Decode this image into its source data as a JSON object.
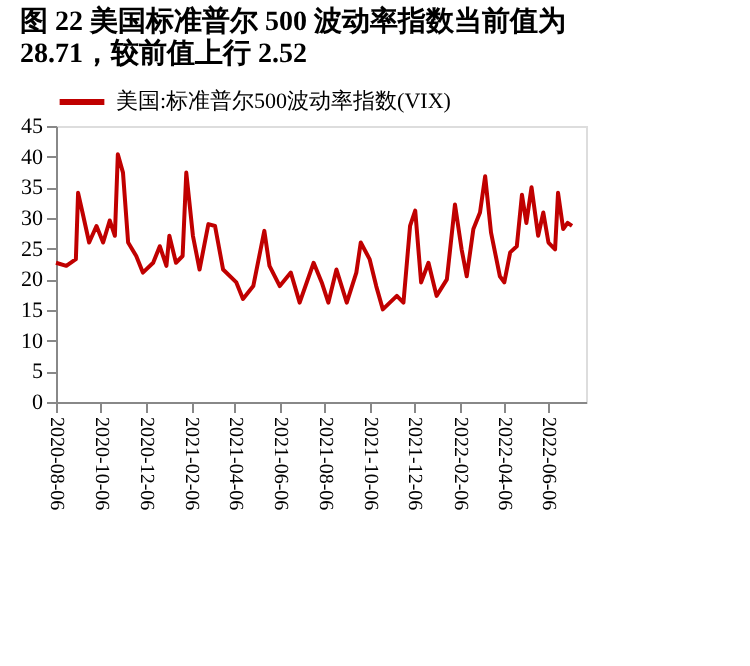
{
  "chart_data": {
    "type": "line",
    "title": "图 22 美国标准普尔 500 波动率指数当前值为 28.71，较前值上行 2.52",
    "series": [
      {
        "name": "美国:标准普尔500波动率指数(VIX)",
        "color": "#c00000",
        "x": [
          "2020-08-06",
          "2020-08-20",
          "2020-09-02",
          "2020-09-05",
          "2020-09-11",
          "2020-09-20",
          "2020-09-30",
          "2020-10-09",
          "2020-10-18",
          "2020-10-25",
          "2020-10-29",
          "2020-11-05",
          "2020-11-12",
          "2020-11-23",
          "2020-12-02",
          "2020-12-16",
          "2020-12-25",
          "2021-01-03",
          "2021-01-07",
          "2021-01-16",
          "2021-01-25",
          "2021-01-30",
          "2021-02-08",
          "2021-02-17",
          "2021-03-01",
          "2021-03-10",
          "2021-03-21",
          "2021-04-08",
          "2021-04-17",
          "2021-05-01",
          "2021-05-16",
          "2021-05-23",
          "2021-06-06",
          "2021-06-21",
          "2021-07-03",
          "2021-07-22",
          "2021-08-02",
          "2021-08-11",
          "2021-08-22",
          "2021-09-05",
          "2021-09-18",
          "2021-09-24",
          "2021-10-06",
          "2021-10-15",
          "2021-10-24",
          "2021-11-12",
          "2021-11-21",
          "2021-11-30",
          "2021-12-07",
          "2021-12-15",
          "2021-12-25",
          "2022-01-05",
          "2022-01-19",
          "2022-01-30",
          "2022-02-08",
          "2022-02-15",
          "2022-02-24",
          "2022-03-05",
          "2022-03-12",
          "2022-03-20",
          "2022-04-01",
          "2022-04-07",
          "2022-04-15",
          "2022-04-24",
          "2022-05-01",
          "2022-05-07",
          "2022-05-14",
          "2022-05-23",
          "2022-05-30",
          "2022-06-06",
          "2022-06-15",
          "2022-06-19",
          "2022-06-26",
          "2022-07-02",
          "2022-07-08"
        ],
        "values": [
          22.7,
          22.2,
          23.3,
          34.1,
          30.9,
          26,
          28.7,
          26,
          29.6,
          27.1,
          40.4,
          37.4,
          26,
          23.8,
          21.1,
          22.7,
          25.4,
          22.2,
          27.1,
          22.7,
          23.8,
          37.4,
          27.1,
          21.6,
          29,
          28.7,
          21.6,
          19.5,
          16.8,
          18.9,
          27.9,
          22.2,
          18.9,
          21.1,
          16.2,
          22.7,
          19.5,
          16.2,
          21.6,
          16.2,
          21.1,
          26,
          23.3,
          18.9,
          15.1,
          17.3,
          16.2,
          28.7,
          31.2,
          19.5,
          22.7,
          17.3,
          20,
          32.2,
          24.9,
          20.5,
          28.2,
          30.9,
          36.8,
          27.6,
          20.5,
          19.5,
          24.4,
          25.4,
          33.8,
          29.2,
          35,
          27.1,
          30.9,
          26,
          24.9,
          34.1,
          28.2,
          29.2,
          28.7
        ]
      }
    ],
    "xlim": [
      "2020-08-06",
      "2022-07-27"
    ],
    "xticks": [
      {
        "value": "2020-08-06",
        "label": "2020-08-06"
      },
      {
        "value": "2020-10-06",
        "label": "2020-10-06"
      },
      {
        "value": "2020-12-06",
        "label": "2020-12-06"
      },
      {
        "value": "2021-02-06",
        "label": "2021-02-06"
      },
      {
        "value": "2021-04-06",
        "label": "2021-04-06"
      },
      {
        "value": "2021-06-06",
        "label": "2021-06-06"
      },
      {
        "value": "2021-08-06",
        "label": "2021-08-06"
      },
      {
        "value": "2021-10-06",
        "label": "2021-10-06"
      },
      {
        "value": "2021-12-06",
        "label": "2021-12-06"
      },
      {
        "value": "2022-02-06",
        "label": "2022-02-06"
      },
      {
        "value": "2022-04-06",
        "label": "2022-04-06"
      },
      {
        "value": "2022-06-06",
        "label": "2022-06-06"
      }
    ],
    "ylim": [
      0,
      45
    ],
    "yticks": [
      0,
      5,
      10,
      15,
      20,
      25,
      30,
      35,
      40,
      45
    ],
    "legend": "top",
    "grid": false,
    "marker": "none",
    "line_style": "solid"
  }
}
